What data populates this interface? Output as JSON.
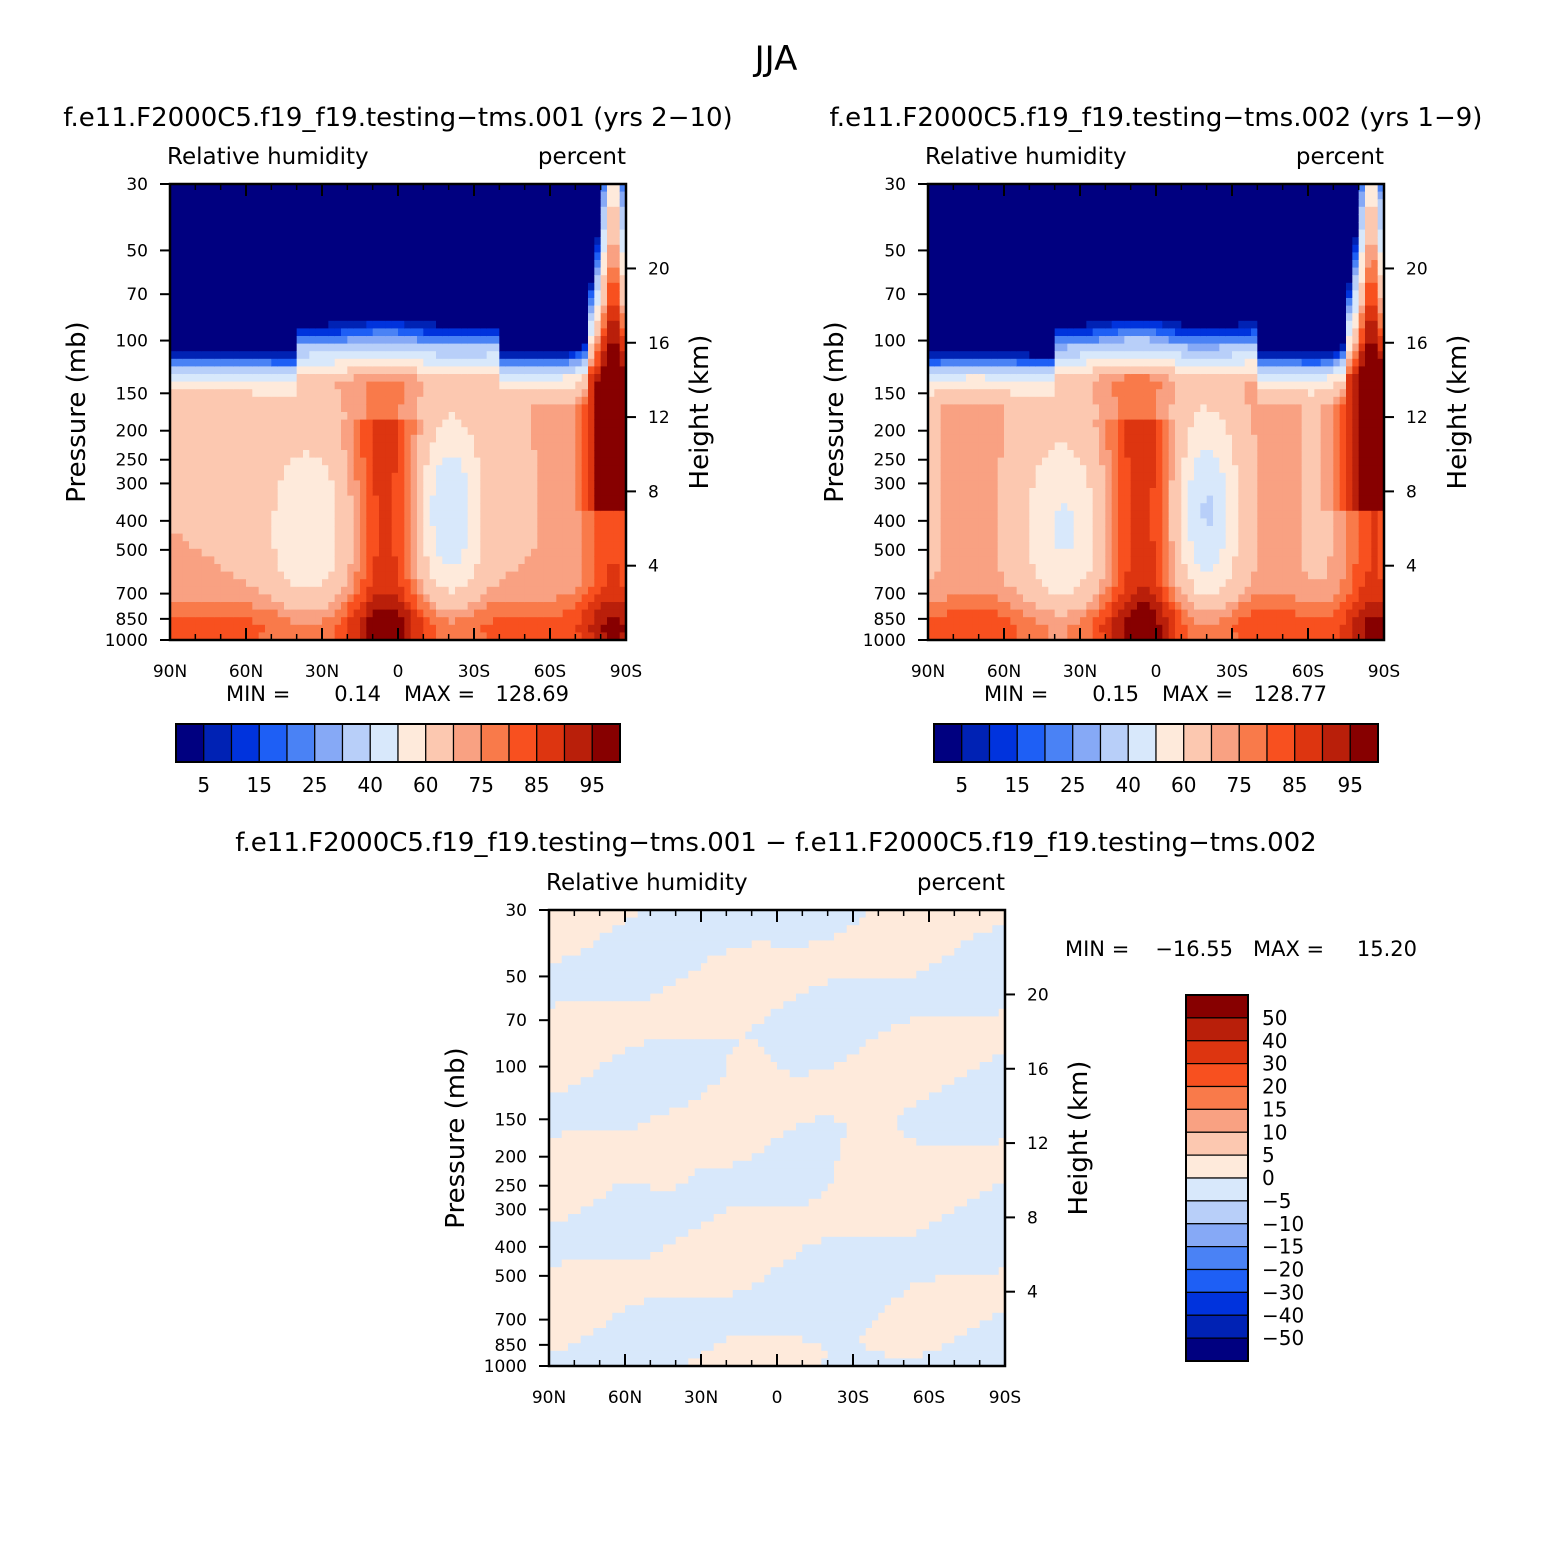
{
  "suptitle": "JJA",
  "chart_data": [
    {
      "type": "heatmap",
      "title": "f.e11.F2000C5.f19_f19.testing−tms.001 (yrs 2−10)",
      "left_string": "Relative humidity",
      "right_string": "percent",
      "ylabel": "Pressure (mb)",
      "y2label": "Height (km)",
      "x_ticks": [
        "90N",
        "60N",
        "30N",
        "0",
        "30S",
        "60S",
        "90S"
      ],
      "x_range": [
        90,
        -90
      ],
      "y_ticks": [
        30,
        50,
        70,
        100,
        150,
        200,
        250,
        300,
        400,
        500,
        700,
        850,
        1000
      ],
      "y_range": [
        1000,
        30
      ],
      "y_scale": "log",
      "y2_ticks": [
        20,
        16,
        12,
        8,
        4
      ],
      "min_label": "MIN =",
      "min_value": "0.14",
      "max_label": "MAX =",
      "max_value": "128.69",
      "colorbar": {
        "orientation": "horizontal",
        "colors": [
          "#000080",
          "#0022b4",
          "#0033dd",
          "#1e5ff5",
          "#4a82f5",
          "#86a9f6",
          "#b8cff9",
          "#d8e8fb",
          "#feeadb",
          "#fcc8b0",
          "#f9a182",
          "#f97a4a",
          "#f8501f",
          "#dd3510",
          "#b91f0a",
          "#870000"
        ],
        "labels": [
          "5",
          "15",
          "25",
          "40",
          "60",
          "75",
          "85",
          "95"
        ]
      }
    },
    {
      "type": "heatmap",
      "title": "f.e11.F2000C5.f19_f19.testing−tms.002 (yrs 1−9)",
      "left_string": "Relative humidity",
      "right_string": "percent",
      "ylabel": "Pressure (mb)",
      "y2label": "Height (km)",
      "x_ticks": [
        "90N",
        "60N",
        "30N",
        "0",
        "30S",
        "60S",
        "90S"
      ],
      "x_range": [
        90,
        -90
      ],
      "y_ticks": [
        30,
        50,
        70,
        100,
        150,
        200,
        250,
        300,
        400,
        500,
        700,
        850,
        1000
      ],
      "y_range": [
        1000,
        30
      ],
      "y_scale": "log",
      "y2_ticks": [
        20,
        16,
        12,
        8,
        4
      ],
      "min_label": "MIN =",
      "min_value": "0.15",
      "max_label": "MAX =",
      "max_value": "128.77",
      "colorbar": {
        "orientation": "horizontal",
        "colors": [
          "#000080",
          "#0022b4",
          "#0033dd",
          "#1e5ff5",
          "#4a82f5",
          "#86a9f6",
          "#b8cff9",
          "#d8e8fb",
          "#feeadb",
          "#fcc8b0",
          "#f9a182",
          "#f97a4a",
          "#f8501f",
          "#dd3510",
          "#b91f0a",
          "#870000"
        ],
        "labels": [
          "5",
          "15",
          "25",
          "40",
          "60",
          "75",
          "85",
          "95"
        ]
      }
    },
    {
      "type": "heatmap",
      "title": "f.e11.F2000C5.f19_f19.testing−tms.001 − f.e11.F2000C5.f19_f19.testing−tms.002",
      "left_string": "Relative humidity",
      "right_string": "percent",
      "ylabel": "Pressure (mb)",
      "y2label": "Height (km)",
      "x_ticks": [
        "90N",
        "60N",
        "30N",
        "0",
        "30S",
        "60S",
        "90S"
      ],
      "x_range": [
        90,
        -90
      ],
      "y_ticks": [
        30,
        50,
        70,
        100,
        150,
        200,
        250,
        300,
        400,
        500,
        700,
        850,
        1000
      ],
      "y_range": [
        1000,
        30
      ],
      "y_scale": "log",
      "y2_ticks": [
        20,
        16,
        12,
        8,
        4
      ],
      "min_label": "MIN =",
      "min_value": "−16.55",
      "max_label": "MAX =",
      "max_value": "15.20",
      "colorbar": {
        "orientation": "vertical",
        "colors": [
          "#000080",
          "#0022b4",
          "#0033dd",
          "#1e5ff5",
          "#4a82f5",
          "#86a9f6",
          "#b8cff9",
          "#d8e8fb",
          "#feeadb",
          "#fcc8b0",
          "#f9a182",
          "#f97a4a",
          "#f8501f",
          "#dd3510",
          "#b91f0a",
          "#870000"
        ],
        "labels": [
          "50",
          "40",
          "30",
          "20",
          "15",
          "10",
          "5",
          "0",
          "−5",
          "−10",
          "−15",
          "−20",
          "−30",
          "−40",
          "−50"
        ]
      }
    }
  ]
}
